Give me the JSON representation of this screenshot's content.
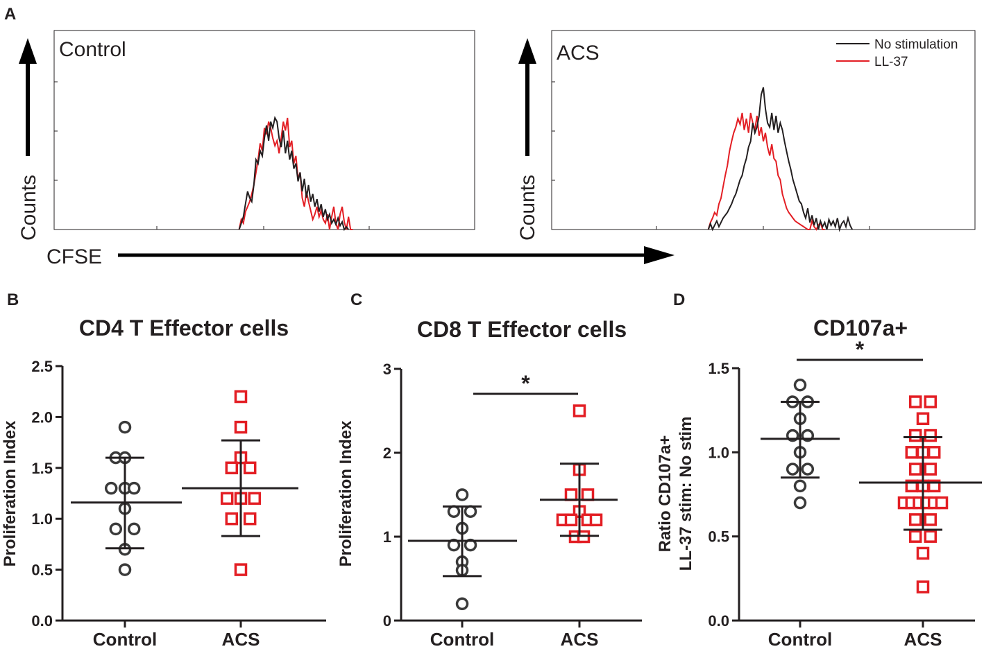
{
  "colors": {
    "black": "#231f20",
    "red": "#e31e24",
    "grey": "#3a3a3a"
  },
  "panel_letters": {
    "a": "A",
    "b": "B",
    "c": "C",
    "d": "D"
  },
  "chart_data": [
    {
      "id": "A",
      "type": "line",
      "subtype": "histogram",
      "plots": [
        {
          "title": "Control",
          "ylabel": "Counts",
          "xlabel": "CFSE",
          "xlim": [
            0,
            100
          ],
          "ylim": [
            0,
            100
          ],
          "series": [
            {
              "name": "No stimulation",
              "color": "#231f20",
              "x": [
                44,
                44.5,
                45,
                45.5,
                46,
                46.5,
                47,
                47.5,
                48,
                48.5,
                49,
                49.5,
                50,
                50.5,
                51,
                51.5,
                52,
                52.5,
                53,
                53.5,
                54,
                54.5,
                55,
                55.5,
                56,
                56.5,
                57,
                57.5,
                58,
                58.5,
                59,
                59.5,
                60,
                60.5,
                61,
                61.5,
                62,
                62.5,
                63,
                63.5,
                64,
                64.5,
                65,
                65.5,
                66,
                66.5,
                67,
                67.5,
                68,
                68.5,
                69,
                69.5,
                70
              ],
              "y": [
                0,
                5,
                10,
                20,
                30,
                25,
                22,
                35,
                55,
                52,
                62,
                58,
                72,
                82,
                70,
                85,
                80,
                88,
                85,
                72,
                65,
                78,
                60,
                70,
                55,
                62,
                48,
                52,
                38,
                45,
                30,
                40,
                25,
                35,
                22,
                28,
                18,
                24,
                14,
                20,
                10,
                16,
                8,
                12,
                5,
                8,
                4,
                9,
                3,
                6,
                0,
                2,
                0
              ]
            },
            {
              "name": "LL-37",
              "color": "#e31e24",
              "x": [
                44,
                44.5,
                45,
                45.5,
                46,
                46.5,
                47,
                47.5,
                48,
                48.5,
                49,
                49.5,
                50,
                50.5,
                51,
                51.5,
                52,
                52.5,
                53,
                53.5,
                54,
                54.5,
                55,
                55.5,
                56,
                56.5,
                57,
                57.5,
                58,
                58.5,
                59,
                59.5,
                60,
                60.5,
                61,
                61.5,
                62,
                62.5,
                63,
                63.5,
                64,
                64.5,
                65,
                65.5,
                66,
                66.5,
                67,
                67.5,
                68,
                68.5,
                69,
                69.5,
                70,
                70.5,
                71
              ],
              "y": [
                0,
                8,
                5,
                14,
                18,
                22,
                28,
                35,
                45,
                55,
                68,
                62,
                80,
                75,
                85,
                80,
                72,
                66,
                70,
                60,
                72,
                85,
                78,
                88,
                65,
                70,
                52,
                58,
                40,
                45,
                25,
                18,
                30,
                22,
                15,
                8,
                12,
                18,
                10,
                15,
                8,
                5,
                12,
                0,
                10,
                18,
                5,
                0,
                12,
                18,
                6,
                0,
                10,
                0,
                0
              ]
            }
          ]
        },
        {
          "title": "ACS",
          "ylabel": "Counts",
          "xlim": [
            0,
            100
          ],
          "ylim": [
            0,
            100
          ],
          "legend": [
            "No stimulation",
            "LL-37"
          ],
          "series": [
            {
              "name": "No stimulation",
              "color": "#231f20",
              "x": [
                37,
                37.5,
                38,
                38.5,
                39,
                39.5,
                40,
                40.5,
                41,
                41.5,
                42,
                42.5,
                43,
                43.5,
                44,
                44.5,
                45,
                45.5,
                46,
                46.5,
                47,
                47.5,
                48,
                48.5,
                49,
                49.5,
                50,
                50.5,
                51,
                51.5,
                52,
                52.5,
                53,
                53.5,
                54,
                54.5,
                55,
                55.5,
                56,
                56.5,
                57,
                57.5,
                58,
                58.5,
                59,
                59.5,
                60,
                60.5,
                61,
                61.5,
                62,
                62.5,
                63,
                63.5,
                64,
                64.5,
                65,
                65.5,
                66,
                66.5,
                67,
                67.5,
                68,
                68.5,
                69,
                69.5,
                70,
                70.5,
                71
              ],
              "y": [
                0,
                4,
                0,
                3,
                6,
                2,
                5,
                8,
                10,
                12,
                15,
                18,
                22,
                25,
                30,
                35,
                38,
                45,
                50,
                58,
                62,
                75,
                68,
                72,
                80,
                95,
                100,
                85,
                75,
                72,
                82,
                70,
                80,
                68,
                75,
                70,
                62,
                55,
                48,
                42,
                35,
                30,
                25,
                20,
                18,
                12,
                8,
                15,
                5,
                10,
                3,
                8,
                0,
                6,
                2,
                5,
                0,
                7,
                3,
                6,
                2,
                8,
                0,
                4,
                6,
                2,
                8,
                3,
                0
              ]
            },
            {
              "name": "LL-37",
              "color": "#e31e24",
              "x": [
                37,
                37.5,
                38,
                38.5,
                39,
                39.5,
                40,
                40.5,
                41,
                41.5,
                42,
                42.5,
                43,
                43.5,
                44,
                44.5,
                45,
                45.5,
                46,
                46.5,
                47,
                47.5,
                48,
                48.5,
                49,
                49.5,
                50,
                50.5,
                51,
                51.5,
                52,
                52.5,
                53,
                53.5,
                54,
                54.5,
                55,
                55.5,
                56,
                56.5,
                57,
                57.5,
                58,
                58.5,
                59,
                59.5,
                60,
                60.5,
                61,
                61.5,
                62,
                62.5,
                63,
                63.5,
                64,
                64.5
              ],
              "y": [
                0,
                5,
                8,
                12,
                10,
                18,
                22,
                30,
                38,
                45,
                55,
                62,
                68,
                72,
                78,
                74,
                82,
                70,
                78,
                68,
                82,
                75,
                70,
                80,
                66,
                72,
                62,
                68,
                58,
                52,
                60,
                50,
                48,
                38,
                35,
                25,
                20,
                15,
                12,
                10,
                8,
                6,
                5,
                4,
                3,
                2,
                1,
                0,
                0,
                6,
                2,
                0,
                3,
                5,
                0,
                0
              ]
            }
          ]
        }
      ]
    },
    {
      "id": "B",
      "type": "scatter",
      "title": "CD4 T Effector cells",
      "ylabel": "Proliferation Index",
      "ylim": [
        0,
        2.5
      ],
      "yticks": [
        "0.0",
        "0.5",
        "1.0",
        "1.5",
        "2.0",
        "2.5"
      ],
      "categories": [
        "Control",
        "ACS"
      ],
      "series": [
        {
          "name": "Control",
          "marker": "circle",
          "color": "#3a3a3a",
          "points": [
            [
              0,
              1.9
            ],
            [
              -0.12,
              1.6
            ],
            [
              0,
              1.6
            ],
            [
              -0.18,
              1.3
            ],
            [
              0,
              1.3
            ],
            [
              0.12,
              1.3
            ],
            [
              0,
              1.1
            ],
            [
              -0.12,
              0.9
            ],
            [
              0.12,
              0.9
            ],
            [
              0,
              0.7
            ],
            [
              0,
              0.5
            ]
          ],
          "mean": 1.16,
          "sd_low": 0.71,
          "sd_high": 1.6
        },
        {
          "name": "ACS",
          "marker": "square",
          "color": "#e31e24",
          "points": [
            [
              0,
              2.2
            ],
            [
              0,
              1.9
            ],
            [
              0,
              1.6
            ],
            [
              -0.12,
              1.5
            ],
            [
              0.12,
              1.5
            ],
            [
              -0.18,
              1.2
            ],
            [
              0,
              1.2
            ],
            [
              0.18,
              1.2
            ],
            [
              -0.12,
              1.0
            ],
            [
              0.12,
              1.0
            ],
            [
              0,
              0.5
            ]
          ],
          "mean": 1.3,
          "sd_low": 0.83,
          "sd_high": 1.77
        }
      ]
    },
    {
      "id": "C",
      "type": "scatter",
      "title": "CD8 T Effector cells",
      "ylabel": "Proliferation Index",
      "ylim": [
        0,
        3
      ],
      "yticks": [
        "0",
        "1",
        "2",
        "3"
      ],
      "categories": [
        "Control",
        "ACS"
      ],
      "significance": "*",
      "series": [
        {
          "name": "Control",
          "marker": "circle",
          "color": "#3a3a3a",
          "points": [
            [
              0,
              1.5
            ],
            [
              -0.12,
              1.3
            ],
            [
              0.12,
              1.3
            ],
            [
              0,
              1.1
            ],
            [
              -0.12,
              0.9
            ],
            [
              0.12,
              0.9
            ],
            [
              0,
              0.7
            ],
            [
              0,
              0.6
            ],
            [
              0,
              0.2
            ]
          ],
          "mean": 0.95,
          "sd_low": 0.53,
          "sd_high": 1.36
        },
        {
          "name": "ACS",
          "marker": "square",
          "color": "#e31e24",
          "points": [
            [
              0,
              2.5
            ],
            [
              0,
              1.8
            ],
            [
              -0.12,
              1.5
            ],
            [
              0.12,
              1.5
            ],
            [
              0,
              1.3
            ],
            [
              -0.24,
              1.2
            ],
            [
              -0.12,
              1.2
            ],
            [
              0.12,
              1.2
            ],
            [
              0.24,
              1.2
            ],
            [
              -0.06,
              1.0
            ],
            [
              0.06,
              1.0
            ]
          ],
          "mean": 1.44,
          "sd_low": 1.01,
          "sd_high": 1.87
        }
      ]
    },
    {
      "id": "D",
      "type": "scatter",
      "title": "CD107a+",
      "ylabel_line1": "Ratio CD107a+",
      "ylabel_line2": "LL-37 stim: No stim",
      "ylim": [
        0,
        1.5
      ],
      "yticks": [
        "0.0",
        "0.5",
        "1.0",
        "1.5"
      ],
      "categories": [
        "Control",
        "ACS"
      ],
      "significance": "*",
      "series": [
        {
          "name": "Control",
          "marker": "circle",
          "color": "#3a3a3a",
          "points": [
            [
              0,
              1.4
            ],
            [
              -0.12,
              1.3
            ],
            [
              0.12,
              1.3
            ],
            [
              0,
              1.2
            ],
            [
              -0.12,
              1.1
            ],
            [
              0.12,
              1.1
            ],
            [
              0,
              1.0
            ],
            [
              -0.12,
              0.9
            ],
            [
              0.12,
              0.9
            ],
            [
              0,
              0.8
            ],
            [
              0,
              0.7
            ]
          ],
          "mean": 1.08,
          "sd_low": 0.85,
          "sd_high": 1.3
        },
        {
          "name": "ACS",
          "marker": "square",
          "color": "#e31e24",
          "points": [
            [
              -0.12,
              1.3
            ],
            [
              0.12,
              1.3
            ],
            [
              0,
              1.2
            ],
            [
              -0.12,
              1.1
            ],
            [
              0.12,
              1.1
            ],
            [
              -0.18,
              1.0
            ],
            [
              0,
              1.0
            ],
            [
              0.18,
              1.0
            ],
            [
              -0.12,
              0.9
            ],
            [
              0.12,
              0.9
            ],
            [
              -0.18,
              0.8
            ],
            [
              0,
              0.8
            ],
            [
              0.18,
              0.8
            ],
            [
              -0.3,
              0.7
            ],
            [
              -0.18,
              0.7
            ],
            [
              -0.06,
              0.7
            ],
            [
              0.06,
              0.7
            ],
            [
              0.18,
              0.7
            ],
            [
              0.3,
              0.7
            ],
            [
              -0.12,
              0.6
            ],
            [
              0.12,
              0.6
            ],
            [
              -0.12,
              0.5
            ],
            [
              0.12,
              0.5
            ],
            [
              0,
              0.4
            ],
            [
              0,
              0.2
            ]
          ],
          "mean": 0.82,
          "sd_low": 0.54,
          "sd_high": 1.09
        }
      ]
    }
  ]
}
